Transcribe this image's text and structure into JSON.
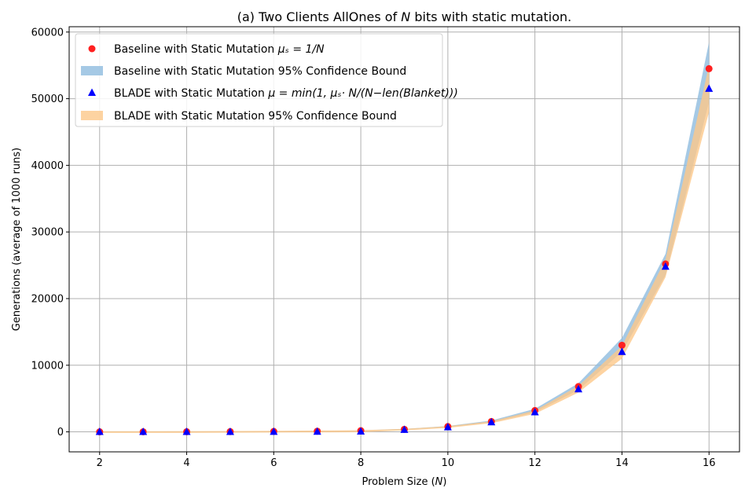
{
  "chart_data": {
    "type": "scatter",
    "title": "(a) Two Clients AllOnes of N bits with static mutation.",
    "title_parts": [
      "(a) Two Clients AllOnes of ",
      "N",
      " bits with static mutation."
    ],
    "xlabel": "Problem Size (N)",
    "xlabel_parts": [
      "Problem Size (",
      "N",
      ")"
    ],
    "ylabel": "Generations (average of 1000 runs)",
    "xlim": [
      1.3,
      16.7
    ],
    "ylim": [
      -3000,
      60800
    ],
    "x_ticks": [
      2,
      4,
      6,
      8,
      10,
      12,
      14,
      16
    ],
    "x_tick_labels": [
      "2",
      "4",
      "6",
      "8",
      "10",
      "12",
      "14",
      "16"
    ],
    "y_ticks": [
      0,
      10000,
      20000,
      30000,
      40000,
      50000,
      60000
    ],
    "y_tick_labels": [
      "0",
      "10000",
      "20000",
      "30000",
      "40000",
      "50000",
      "60000"
    ],
    "grid": true,
    "legend_position": "top-left",
    "x": [
      2,
      3,
      4,
      5,
      6,
      7,
      8,
      9,
      10,
      11,
      12,
      13,
      14,
      15,
      16
    ],
    "series": [
      {
        "name": "Baseline with Static Mutation μ_s = 1/N",
        "legend_parts": {
          "prefix": "Baseline with Static Mutation ",
          "formula": "μₛ = 1/N"
        },
        "marker": "circle",
        "color": "#ff2020",
        "values": [
          5,
          10,
          20,
          35,
          60,
          100,
          180,
          380,
          800,
          1550,
          3200,
          6800,
          13000,
          25200,
          54500
        ]
      },
      {
        "name": "Baseline with Static Mutation 95% Confidence Bound",
        "legend_parts": {
          "prefix": "Baseline with Static Mutation 95% Confidence Bound",
          "formula": ""
        },
        "type": "area",
        "color": "#8fbcdf",
        "lower": [
          0,
          0,
          10,
          25,
          45,
          80,
          150,
          330,
          730,
          1420,
          2950,
          6300,
          12000,
          23500,
          49500
        ],
        "upper": [
          15,
          25,
          35,
          50,
          80,
          130,
          220,
          440,
          880,
          1700,
          3450,
          7300,
          14100,
          26700,
          58500
        ]
      },
      {
        "name": "BLADE with Static Mutation μ = min(1, μ_s · N/(N − len(Blanket)))",
        "legend_parts": {
          "prefix": "BLADE with Static Mutation ",
          "formula": "μ = min(1, μₛ· N/(N−len(Blanket)))"
        },
        "marker": "triangle",
        "color": "#0000ff",
        "values": [
          0,
          0,
          5,
          10,
          20,
          40,
          70,
          320,
          700,
          1450,
          2950,
          6400,
          12000,
          24800,
          51500
        ]
      },
      {
        "name": "BLADE with Static Mutation 95% Confidence Bound",
        "legend_parts": {
          "prefix": "BLADE with Static Mutation 95% Confidence Bound",
          "formula": ""
        },
        "type": "area",
        "color": "#fdc88a",
        "lower": [
          -150,
          -150,
          -150,
          -120,
          -100,
          -80,
          -50,
          220,
          600,
          1300,
          2700,
          5900,
          11000,
          23200,
          48000
        ],
        "upper": [
          100,
          100,
          110,
          130,
          150,
          200,
          250,
          450,
          850,
          1600,
          3200,
          6900,
          12900,
          25900,
          55000
        ]
      }
    ]
  }
}
